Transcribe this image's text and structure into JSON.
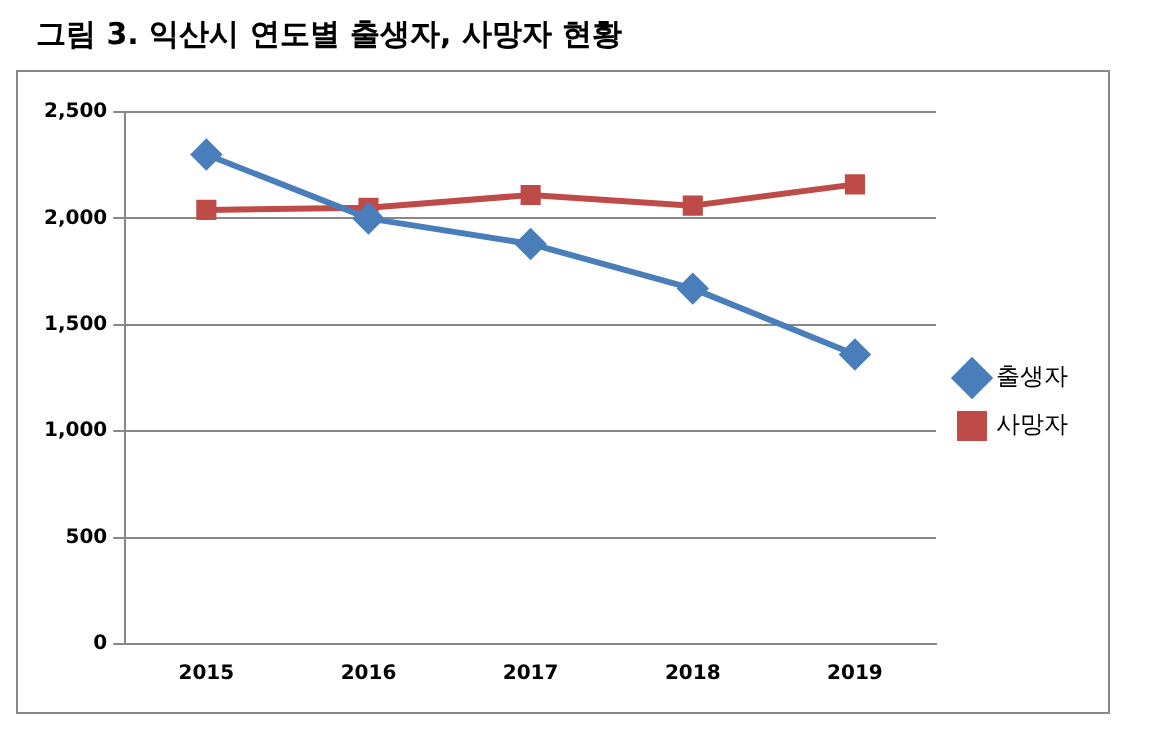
{
  "chart_data": {
    "type": "line",
    "title": "그림 3. 익산시 연도별 출생자, 사망자 현황",
    "categories": [
      "2015",
      "2016",
      "2017",
      "2018",
      "2019"
    ],
    "series": [
      {
        "name": "출생자",
        "color": "#4a7ebb",
        "marker": "diamond",
        "values": [
          2300,
          2000,
          1880,
          1670,
          1360
        ]
      },
      {
        "name": "사망자",
        "color": "#be4b48",
        "marker": "square",
        "values": [
          2040,
          2050,
          2110,
          2060,
          2160
        ]
      }
    ],
    "ylim": [
      0,
      2500
    ],
    "yticks": [
      0,
      500,
      {
        "value": 1000,
        "label": "1,000"
      },
      {
        "value": 1500,
        "label": "1,500"
      },
      {
        "value": 2000,
        "label": "2,000"
      },
      {
        "value": 2500,
        "label": "2,500"
      }
    ],
    "grid": "y",
    "legend": "right"
  }
}
